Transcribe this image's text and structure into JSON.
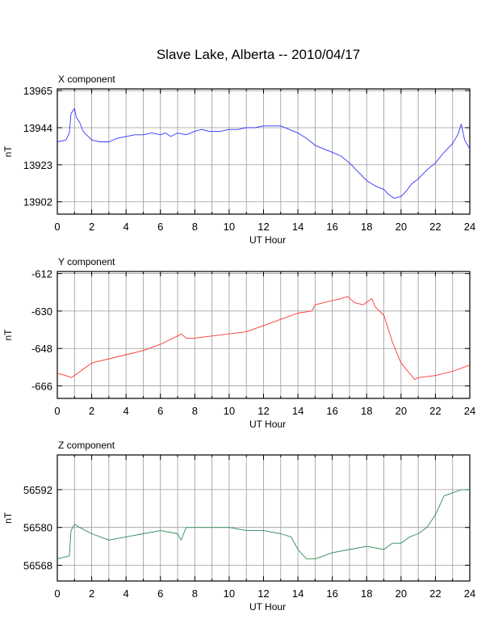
{
  "title": "Slave Lake, Alberta -- 2010/04/17",
  "chart_data": [
    {
      "type": "line",
      "panel_title": "X component",
      "xlabel": "UT Hour",
      "ylabel": "nT",
      "color": "#3333ff",
      "xlim": [
        0,
        24
      ],
      "ylim": [
        13895,
        13966
      ],
      "xticks": [
        0,
        2,
        4,
        6,
        8,
        10,
        12,
        14,
        16,
        18,
        20,
        22,
        24
      ],
      "yticks": [
        13902,
        13923,
        13944,
        13965
      ],
      "series": [
        {
          "x": [
            0,
            0.5,
            0.7,
            0.8,
            1.0,
            1.1,
            1.3,
            1.5,
            1.8,
            2.0,
            2.5,
            3.0,
            3.5,
            4.0,
            4.5,
            5.0,
            5.5,
            6.0,
            6.3,
            6.6,
            7.0,
            7.5,
            8.0,
            8.4,
            8.8,
            9.5,
            10.0,
            10.5,
            11.0,
            11.5,
            12.0,
            12.5,
            13.0,
            13.5,
            14.0,
            14.5,
            15.0,
            15.5,
            16.0,
            16.5,
            17.0,
            17.5,
            18.0,
            18.5,
            19.0,
            19.3,
            19.6,
            20.0,
            20.3,
            20.6,
            21.0,
            21.5,
            22.0,
            22.5,
            23.0,
            23.3,
            23.5,
            23.7,
            24.0
          ],
          "values": [
            13936,
            13937,
            13941,
            13952,
            13955,
            13950,
            13947,
            13942,
            13939,
            13937,
            13936,
            13936,
            13938,
            13939,
            13940,
            13940,
            13941,
            13940,
            13941,
            13939,
            13941,
            13940,
            13942,
            13943,
            13942,
            13942,
            13943,
            13943,
            13944,
            13944,
            13945,
            13945,
            13945,
            13943,
            13941,
            13938,
            13934,
            13932,
            13930,
            13928,
            13924,
            13919,
            13914,
            13911,
            13909,
            13906,
            13904,
            13905,
            13908,
            13912,
            13915,
            13920,
            13924,
            13930,
            13935,
            13940,
            13946,
            13937,
            13932
          ]
        }
      ]
    },
    {
      "type": "line",
      "panel_title": "Y component",
      "xlabel": "UT Hour",
      "ylabel": "nT",
      "color": "#ff3333",
      "xlim": [
        0,
        24
      ],
      "ylim": [
        -672,
        -611
      ],
      "xticks": [
        0,
        2,
        4,
        6,
        8,
        10,
        12,
        14,
        16,
        18,
        20,
        22,
        24
      ],
      "yticks": [
        -612,
        -630,
        -648,
        -666
      ],
      "series": [
        {
          "x": [
            0,
            0.5,
            0.8,
            1.0,
            1.5,
            2.0,
            3.0,
            4.0,
            5.0,
            6.0,
            6.5,
            7.0,
            7.2,
            7.5,
            8.0,
            9.0,
            10.0,
            11.0,
            12.0,
            13.0,
            14.0,
            14.8,
            15.0,
            15.5,
            16.0,
            16.5,
            16.9,
            17.3,
            17.8,
            18.3,
            18.5,
            19.0,
            19.5,
            20.0,
            20.5,
            20.8,
            21.0,
            22.0,
            23.0,
            24.0
          ],
          "values": [
            -660,
            -661,
            -662,
            -661,
            -658,
            -655,
            -653,
            -651,
            -649,
            -646,
            -644,
            -642,
            -641,
            -643,
            -643,
            -642,
            -641,
            -640,
            -637,
            -634,
            -631,
            -630,
            -627,
            -626,
            -625,
            -624,
            -623,
            -626,
            -627,
            -624,
            -628,
            -632,
            -645,
            -655,
            -660,
            -663,
            -662,
            -661,
            -659,
            -656
          ]
        }
      ]
    },
    {
      "type": "line",
      "panel_title": "Z component",
      "xlabel": "UT Hour",
      "ylabel": "nT",
      "color": "#2e8b57",
      "xlim": [
        0,
        24
      ],
      "ylim": [
        56563,
        56603
      ],
      "xticks": [
        0,
        2,
        4,
        6,
        8,
        10,
        12,
        14,
        16,
        18,
        20,
        22,
        24
      ],
      "yticks": [
        56568,
        56580,
        56592
      ],
      "series": [
        {
          "x": [
            0,
            0.7,
            0.8,
            1.0,
            1.3,
            2.0,
            3.0,
            4.0,
            5.0,
            6.0,
            7.0,
            7.2,
            7.5,
            8.0,
            9.0,
            10.0,
            11.0,
            12.0,
            13.0,
            13.6,
            14.0,
            14.5,
            15.0,
            15.5,
            16.0,
            17.0,
            18.0,
            19.0,
            19.5,
            20.0,
            20.5,
            21.0,
            21.5,
            22.0,
            22.5,
            23.0,
            23.5,
            24.0
          ],
          "values": [
            56570,
            56571,
            56579,
            56581,
            56580,
            56578,
            56576,
            56577,
            56578,
            56579,
            56578,
            56576,
            56580,
            56580,
            56580,
            56580,
            56579,
            56579,
            56578,
            56577,
            56573,
            56570,
            56570,
            56571,
            56572,
            56573,
            56574,
            56573,
            56575,
            56575,
            56577,
            56578,
            56580,
            56584,
            56590,
            56591,
            56592,
            56592
          ]
        }
      ]
    }
  ]
}
